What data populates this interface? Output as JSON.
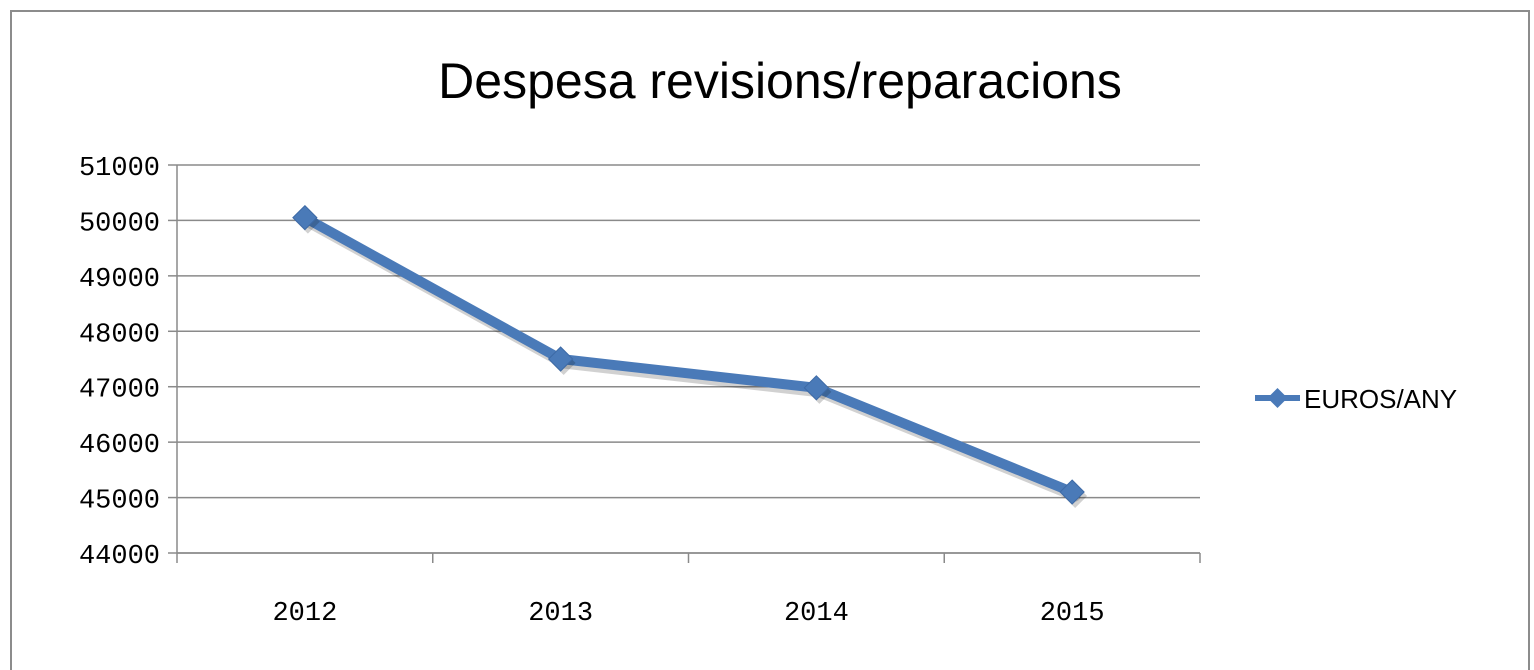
{
  "chart_data": {
    "type": "line",
    "title": "Despesa revisions/reparacions",
    "xlabel": "",
    "ylabel": "",
    "categories": [
      "2012",
      "2013",
      "2014",
      "2015"
    ],
    "series": [
      {
        "name": "EUROS/ANY",
        "values": [
          50050,
          47500,
          46980,
          45100
        ],
        "color": "#4a7ab8"
      }
    ],
    "ylim": [
      44000,
      51000
    ],
    "yticks": [
      "51000",
      "50000",
      "49000",
      "48000",
      "47000",
      "46000",
      "45000",
      "44000"
    ],
    "grid": true,
    "legend_position": "right",
    "marker": "diamond"
  }
}
